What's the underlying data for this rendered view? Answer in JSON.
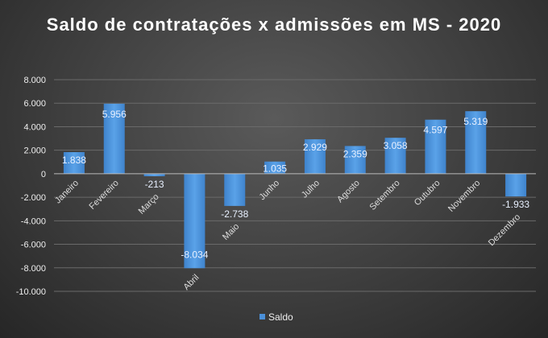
{
  "chart_data": {
    "type": "bar",
    "title": "Saldo de contratações x admissões em MS - 2020",
    "categories": [
      "Janeiro",
      "Fevereiro",
      "Março",
      "Abril",
      "Maio",
      "Junho",
      "Julho",
      "Agosto",
      "Setembro",
      "Outubro",
      "Novembro",
      "Dezembro"
    ],
    "series": [
      {
        "name": "Saldo",
        "values": [
          1838,
          5956,
          -213,
          -8034,
          -2738,
          1035,
          2929,
          2359,
          3058,
          4597,
          5319,
          -1933
        ],
        "labels": [
          "1.838",
          "5.956",
          "-213",
          "-8.034",
          "-2.738",
          "1.035",
          "2.929",
          "2.359",
          "3.058",
          "4.597",
          "5.319",
          "-1.933"
        ]
      }
    ],
    "ylim": [
      -10000,
      8000
    ],
    "yticks": [
      8000,
      6000,
      4000,
      2000,
      0,
      -2000,
      -4000,
      -6000,
      -8000,
      -10000
    ],
    "ytick_labels": [
      "8.000",
      "6.000",
      "4.000",
      "2.000",
      "0",
      "-2.000",
      "-4.000",
      "-6.000",
      "-8.000",
      "-10.000"
    ],
    "grid": true,
    "legend": "bottom",
    "color": "#4a90d9"
  }
}
